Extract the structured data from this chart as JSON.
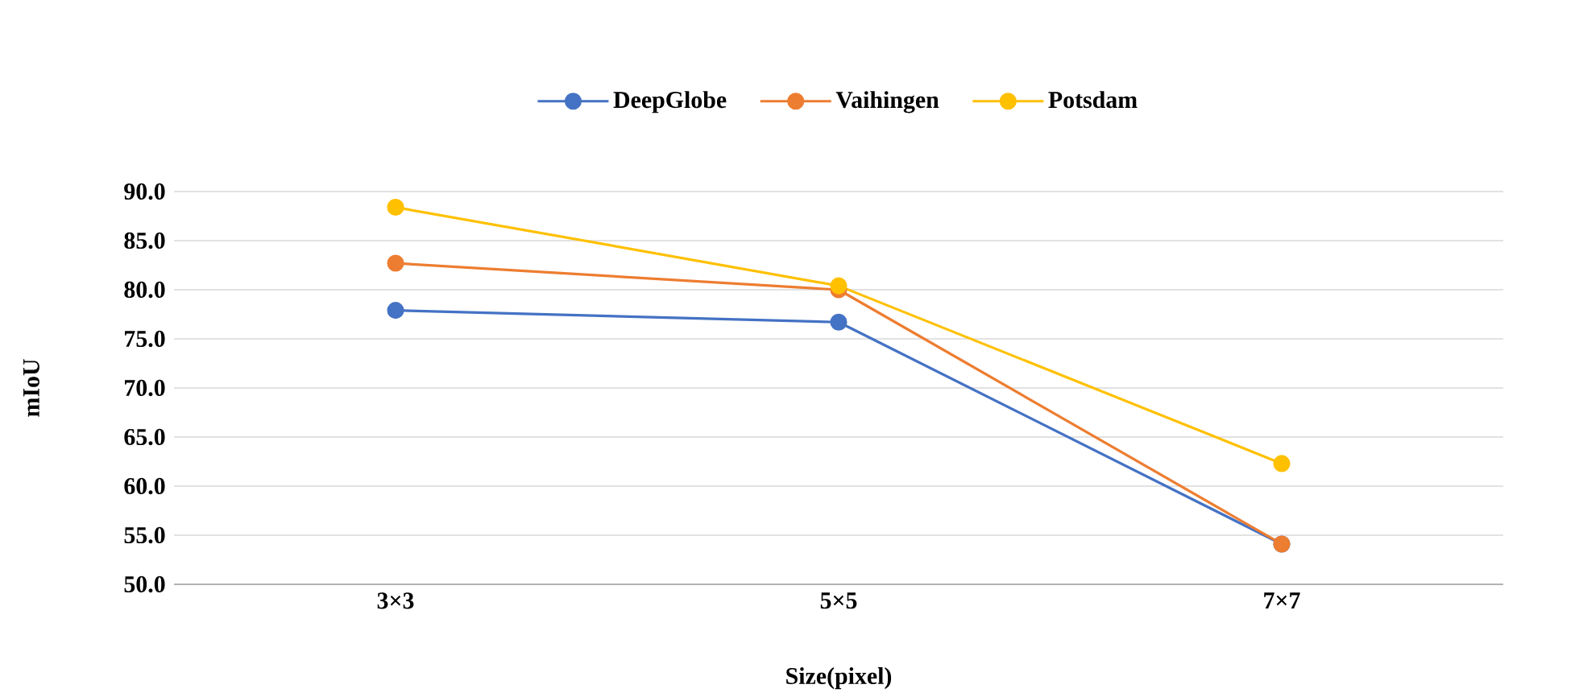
{
  "chart_data": {
    "type": "line",
    "xlabel": "Size(pixel)",
    "ylabel": "mIoU",
    "categories": [
      "3×3",
      "5×5",
      "7×7"
    ],
    "series": [
      {
        "name": "DeepGlobe",
        "color": "#4472c4",
        "values": [
          77.9,
          76.7,
          54.1
        ]
      },
      {
        "name": "Vaihingen",
        "color": "#ed7d31",
        "values": [
          82.7,
          80.0,
          54.1
        ]
      },
      {
        "name": "Potsdam",
        "color": "#ffc000",
        "values": [
          88.4,
          80.4,
          62.3
        ]
      }
    ],
    "ylim": [
      50,
      90
    ],
    "yticks": [
      {
        "value": 50,
        "label": "50.0"
      },
      {
        "value": 55,
        "label": "55.0"
      },
      {
        "value": 60,
        "label": "60.0"
      },
      {
        "value": 65,
        "label": "65.0"
      },
      {
        "value": 70,
        "label": "70.0"
      },
      {
        "value": 75,
        "label": "75.0"
      },
      {
        "value": 80,
        "label": "80.0"
      },
      {
        "value": 85,
        "label": "85.0"
      },
      {
        "value": 90,
        "label": "90.0"
      }
    ],
    "grid": "y",
    "legend": "top",
    "marker": "circle",
    "line_style": "solid"
  }
}
